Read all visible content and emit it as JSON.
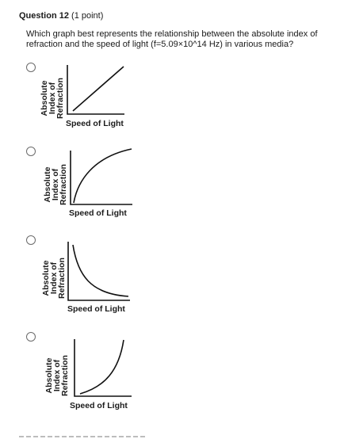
{
  "question": {
    "number_label": "Question 12",
    "points_label": "(1 point)",
    "text": "Which graph best represents the relationship between the absolute index of refraction and the speed of light (f=5.09×10^14 Hz) in various media?"
  },
  "graph_labels": {
    "y_line1": "Absolute",
    "y_line2": "Index of",
    "y_line3": "Refraction",
    "x": "Speed of Light"
  },
  "options": [
    {
      "curve": "linear-increasing",
      "selected": false
    },
    {
      "curve": "concave-increasing",
      "selected": false
    },
    {
      "curve": "decreasing-inverse",
      "selected": false
    },
    {
      "curve": "convex-increasing",
      "selected": false
    }
  ]
}
